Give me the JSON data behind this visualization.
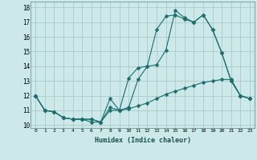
{
  "xlabel": "Humidex (Indice chaleur)",
  "xlim": [
    -0.5,
    23.5
  ],
  "ylim": [
    9.8,
    18.4
  ],
  "xticks": [
    0,
    1,
    2,
    3,
    4,
    5,
    6,
    7,
    8,
    9,
    10,
    11,
    12,
    13,
    14,
    15,
    16,
    17,
    18,
    19,
    20,
    21,
    22,
    23
  ],
  "yticks": [
    10,
    11,
    12,
    13,
    14,
    15,
    16,
    17,
    18
  ],
  "bg_color": "#cce8e8",
  "grid_color": "#aacaca",
  "line_color": "#1a6e6e",
  "line1_x": [
    0,
    1,
    2,
    3,
    4,
    5,
    6,
    7,
    8,
    9,
    10,
    11,
    12,
    13,
    14,
    15,
    16,
    17,
    18,
    19,
    20,
    21,
    22,
    23
  ],
  "line1_y": [
    12.0,
    11.0,
    10.9,
    10.5,
    10.4,
    10.4,
    10.4,
    10.2,
    11.0,
    11.0,
    11.1,
    11.3,
    11.5,
    11.8,
    12.1,
    12.3,
    12.5,
    12.7,
    12.9,
    13.0,
    13.1,
    13.1,
    12.0,
    11.8
  ],
  "line2_x": [
    0,
    1,
    2,
    3,
    4,
    5,
    6,
    7,
    8,
    9,
    10,
    11,
    12,
    13,
    14,
    15,
    16,
    17,
    18,
    19,
    20,
    21,
    22,
    23
  ],
  "line2_y": [
    12.0,
    11.0,
    10.9,
    10.5,
    10.4,
    10.4,
    10.4,
    10.2,
    11.8,
    11.0,
    13.2,
    13.9,
    14.0,
    16.5,
    17.4,
    17.5,
    17.2,
    17.0,
    17.5,
    16.5,
    14.9,
    13.0,
    12.0,
    11.8
  ],
  "line3_x": [
    0,
    1,
    2,
    3,
    4,
    5,
    6,
    7,
    8,
    9,
    10,
    11,
    12,
    13,
    14,
    15,
    16,
    17,
    18,
    19,
    20,
    21,
    22,
    23
  ],
  "line3_y": [
    12.0,
    11.0,
    10.9,
    10.5,
    10.4,
    10.4,
    10.2,
    10.2,
    11.2,
    11.0,
    11.2,
    13.1,
    14.0,
    14.1,
    15.1,
    17.8,
    17.3,
    17.0,
    17.5,
    16.5,
    14.9,
    13.0,
    12.0,
    11.8
  ]
}
